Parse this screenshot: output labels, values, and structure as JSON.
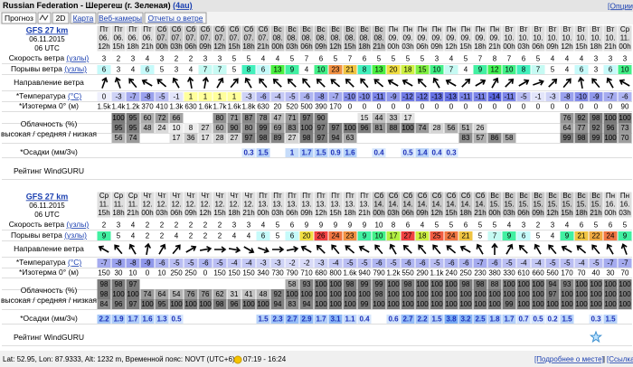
{
  "header": {
    "title": "Russian Federation - Шерегеш (г. Зеленая)",
    "code": "(4au)",
    "options": "[Опции]"
  },
  "tabs": [
    "Прогноз",
    "2D",
    "Карта",
    "Веб-камеры",
    "Отчеты о ветре"
  ],
  "row_labels": {
    "speed": [
      "Скорость ветра",
      "(узлы)"
    ],
    "gust": [
      "Порывы ветра",
      "(узлы)"
    ],
    "direction": "Направление ветра",
    "temp": [
      "*Температура",
      "(°C)"
    ],
    "iso": "*Изотерма 0° (м)",
    "cloud": [
      "Облачность (%)",
      "высокая / средняя / низкая"
    ],
    "precip": "*Осадки (мм/3ч)",
    "rating": "Рейтинг WindGURU"
  },
  "sections": [
    {
      "model": "GFS 27 km",
      "date": "06.11.2015",
      "run": "06 UTC",
      "days": [
        "Пт",
        "Пт",
        "Пт",
        "Пт",
        "Сб",
        "Сб",
        "Сб",
        "Сб",
        "Сб",
        "Сб",
        "Сб",
        "Сб",
        "Вс",
        "Вс",
        "Вс",
        "Вс",
        "Вс",
        "Вс",
        "Вс",
        "Вс",
        "Пн",
        "Пн",
        "Пн",
        "Пн",
        "Пн",
        "Пн",
        "Пн",
        "Пн",
        "Вт",
        "Вт",
        "Вт",
        "Вт",
        "Вт",
        "Вт",
        "Вт",
        "Вт",
        "Ср"
      ],
      "dates": [
        "06.",
        "06.",
        "06.",
        "06.",
        "07.",
        "07.",
        "07.",
        "07.",
        "07.",
        "07.",
        "07.",
        "07.",
        "08.",
        "08.",
        "08.",
        "08.",
        "08.",
        "08.",
        "08.",
        "08.",
        "09.",
        "09.",
        "09.",
        "09.",
        "09.",
        "09.",
        "09.",
        "09.",
        "10.",
        "10.",
        "10.",
        "10.",
        "10.",
        "10.",
        "10.",
        "10.",
        "11."
      ],
      "hours": [
        "12h",
        "15h",
        "18h",
        "21h",
        "00h",
        "03h",
        "06h",
        "09h",
        "12h",
        "15h",
        "18h",
        "21h",
        "00h",
        "03h",
        "06h",
        "09h",
        "12h",
        "15h",
        "18h",
        "21h",
        "00h",
        "03h",
        "06h",
        "09h",
        "12h",
        "15h",
        "18h",
        "21h",
        "00h",
        "03h",
        "06h",
        "09h",
        "12h",
        "15h",
        "18h",
        "21h",
        "00h"
      ],
      "speed": [
        3,
        2,
        3,
        4,
        3,
        2,
        2,
        3,
        3,
        5,
        5,
        4,
        4,
        5,
        7,
        6,
        5,
        7,
        6,
        5,
        5,
        5,
        5,
        3,
        4,
        5,
        7,
        8,
        7,
        6,
        5,
        4,
        4,
        4,
        3,
        3,
        3
      ],
      "gust": [
        6,
        3,
        4,
        6,
        5,
        3,
        4,
        7,
        7,
        5,
        8,
        6,
        13,
        9,
        4,
        10,
        23,
        21,
        8,
        13,
        20,
        18,
        15,
        10,
        7,
        4,
        9,
        12,
        10,
        8,
        7,
        5,
        4,
        6,
        3,
        6,
        10
      ],
      "direction": [
        20,
        340,
        320,
        300,
        310,
        330,
        350,
        10,
        30,
        40,
        330,
        320,
        315,
        315,
        320,
        315,
        310,
        315,
        320,
        310,
        300,
        300,
        315,
        330,
        300,
        45,
        60,
        30,
        45,
        60,
        70,
        45,
        40,
        350,
        320,
        330,
        300
      ],
      "temp": [
        0,
        -3,
        -7,
        -8,
        -5,
        -1,
        1,
        1,
        1,
        1,
        -3,
        -6,
        -4,
        -5,
        -6,
        -8,
        -7,
        -10,
        -10,
        -11,
        -9,
        -12,
        -12,
        -13,
        -13,
        -11,
        -11,
        -14,
        -11,
        -5,
        -1,
        -3,
        -8,
        -10,
        -9,
        -7,
        -6
      ],
      "iso": [
        "1.5k",
        "1.4k",
        "1.2k",
        370,
        410,
        "1.3k",
        630,
        "1.6k",
        "1.7k",
        "1.6k",
        "1.8k",
        630,
        20,
        520,
        500,
        390,
        170,
        0,
        0,
        0,
        0,
        0,
        0,
        0,
        0,
        0,
        0,
        0,
        0,
        0,
        0,
        0,
        0,
        0,
        0,
        0,
        90
      ],
      "cloud_high": [
        null,
        100,
        95,
        60,
        72,
        66,
        null,
        null,
        80,
        71,
        87,
        78,
        47,
        71,
        97,
        90,
        null,
        null,
        15,
        44,
        33,
        17,
        null,
        null,
        null,
        null,
        null,
        null,
        null,
        null,
        null,
        null,
        76,
        92,
        98,
        100,
        100
      ],
      "cloud_mid": [
        null,
        95,
        95,
        48,
        24,
        10,
        8,
        27,
        60,
        90,
        80,
        99,
        69,
        83,
        100,
        97,
        97,
        100,
        96,
        81,
        88,
        100,
        74,
        28,
        56,
        51,
        26,
        null,
        null,
        null,
        null,
        null,
        64,
        77,
        92,
        96,
        73
      ],
      "cloud_low": [
        null,
        56,
        74,
        null,
        null,
        17,
        36,
        17,
        28,
        27,
        97,
        98,
        89,
        27,
        98,
        97,
        94,
        63,
        null,
        null,
        null,
        null,
        null,
        null,
        null,
        83,
        57,
        86,
        58,
        null,
        null,
        null,
        99,
        98,
        99,
        100,
        70
      ],
      "precip": [
        null,
        null,
        null,
        null,
        null,
        null,
        null,
        null,
        null,
        null,
        0.3,
        1.5,
        null,
        1,
        1.7,
        1.5,
        0.9,
        1.6,
        null,
        0.4,
        null,
        0.5,
        1.4,
        0.4,
        0.3,
        null,
        null,
        null,
        null,
        null,
        null,
        null,
        null,
        null,
        null,
        null,
        null
      ]
    },
    {
      "model": "GFS 27 km",
      "date": "06.11.2015",
      "run": "06 UTC",
      "days": [
        "Ср",
        "Ср",
        "Ср",
        "Чт",
        "Чт",
        "Чт",
        "Чт",
        "Чт",
        "Чт",
        "Чт",
        "Чт",
        "Пт",
        "Пт",
        "Пт",
        "Пт",
        "Пт",
        "Пт",
        "Пт",
        "Пт",
        "Сб",
        "Сб",
        "Сб",
        "Сб",
        "Сб",
        "Сб",
        "Сб",
        "Сб",
        "Вс",
        "Вс",
        "Вс",
        "Вс",
        "Вс",
        "Вс",
        "Вс",
        "Вс",
        "Пн",
        "Пн"
      ],
      "dates": [
        "11.",
        "11.",
        "11.",
        "12.",
        "12.",
        "12.",
        "12.",
        "12.",
        "12.",
        "12.",
        "12.",
        "13.",
        "13.",
        "13.",
        "13.",
        "13.",
        "13.",
        "13.",
        "13.",
        "14.",
        "14.",
        "14.",
        "14.",
        "14.",
        "14.",
        "14.",
        "14.",
        "15.",
        "15.",
        "15.",
        "15.",
        "15.",
        "15.",
        "15.",
        "15.",
        "16.",
        "16."
      ],
      "hours": [
        "15h",
        "18h",
        "21h",
        "00h",
        "03h",
        "06h",
        "09h",
        "12h",
        "15h",
        "18h",
        "21h",
        "00h",
        "03h",
        "06h",
        "09h",
        "12h",
        "15h",
        "18h",
        "21h",
        "00h",
        "03h",
        "06h",
        "09h",
        "12h",
        "15h",
        "18h",
        "21h",
        "00h",
        "03h",
        "06h",
        "09h",
        "12h",
        "15h",
        "18h",
        "21h",
        "00h",
        "03h"
      ],
      "speed": [
        2,
        3,
        4,
        2,
        2,
        2,
        2,
        2,
        2,
        3,
        3,
        4,
        5,
        6,
        9,
        9,
        9,
        9,
        9,
        10,
        8,
        6,
        4,
        5,
        5,
        6,
        5,
        5,
        4,
        3,
        2,
        3,
        4,
        6,
        5,
        6,
        5
      ],
      "gust": [
        9,
        5,
        4,
        2,
        2,
        4,
        2,
        2,
        2,
        4,
        4,
        6,
        5,
        6,
        20,
        26,
        24,
        23,
        9,
        10,
        17,
        27,
        18,
        25,
        24,
        21,
        5,
        7,
        9,
        6,
        5,
        4,
        9,
        21,
        22,
        24,
        9
      ],
      "direction": [
        300,
        320,
        330,
        10,
        30,
        40,
        60,
        80,
        90,
        100,
        120,
        110,
        90,
        80,
        300,
        315,
        320,
        310,
        300,
        320,
        330,
        315,
        320,
        320,
        310,
        300,
        330,
        0,
        30,
        315,
        330,
        320,
        300,
        310,
        320,
        330,
        340
      ],
      "temp": [
        -7,
        -8,
        -8,
        -9,
        -6,
        -5,
        -5,
        -6,
        -5,
        -4,
        -4,
        -3,
        -3,
        -2,
        -2,
        -3,
        -4,
        -5,
        -5,
        -6,
        -5,
        -6,
        -6,
        -5,
        -6,
        -6,
        -7,
        -6,
        -5,
        -4,
        -4,
        -5,
        -5,
        -4,
        -5,
        -7,
        -7
      ],
      "iso": [
        150,
        30,
        10,
        0,
        10,
        250,
        250,
        0,
        150,
        150,
        150,
        340,
        730,
        790,
        710,
        680,
        800,
        "1.6k",
        940,
        790,
        "1.2k",
        550,
        290,
        "1.1k",
        240,
        250,
        230,
        380,
        330,
        610,
        660,
        560,
        170,
        70,
        40,
        30,
        70
      ],
      "cloud_high": [
        98,
        98,
        97,
        null,
        null,
        null,
        null,
        null,
        null,
        null,
        null,
        null,
        null,
        58,
        93,
        100,
        100,
        98,
        99,
        99,
        100,
        98,
        100,
        100,
        100,
        98,
        98,
        88,
        100,
        100,
        100,
        94,
        93,
        100,
        100,
        100,
        100
      ],
      "cloud_mid": [
        98,
        100,
        100,
        74,
        64,
        54,
        76,
        76,
        62,
        31,
        41,
        48,
        92,
        100,
        100,
        100,
        100,
        100,
        100,
        98,
        100,
        100,
        100,
        100,
        100,
        100,
        100,
        100,
        100,
        100,
        100,
        97,
        100,
        100,
        100,
        100,
        100
      ],
      "cloud_low": [
        84,
        96,
        97,
        100,
        95,
        100,
        100,
        100,
        98,
        96,
        100,
        100,
        94,
        83,
        94,
        100,
        100,
        100,
        99,
        100,
        100,
        100,
        100,
        100,
        100,
        100,
        100,
        100,
        99,
        100,
        100,
        100,
        100,
        100,
        100,
        100,
        100
      ],
      "precip": [
        2.2,
        1.9,
        1.7,
        1.6,
        1.3,
        0.5,
        null,
        null,
        null,
        null,
        null,
        1.5,
        2.3,
        2.7,
        2.9,
        1.7,
        3.1,
        1.1,
        0.4,
        null,
        0.6,
        2.7,
        2.2,
        1.5,
        3.8,
        3.2,
        2.5,
        1.8,
        1.7,
        0.7,
        0.5,
        0.2,
        1.5,
        null,
        0.3,
        1.5,
        null
      ]
    }
  ],
  "footer": {
    "location": "Lat: 52.95, Lon: 87.9333, Alt: 1232 m, Временной пояс: NOVT (UTC+6)",
    "sun": "07:19 - 16:24",
    "links": [
      "[Подробнее о месте]",
      "[Ссылка]"
    ],
    "separator": "|"
  }
}
